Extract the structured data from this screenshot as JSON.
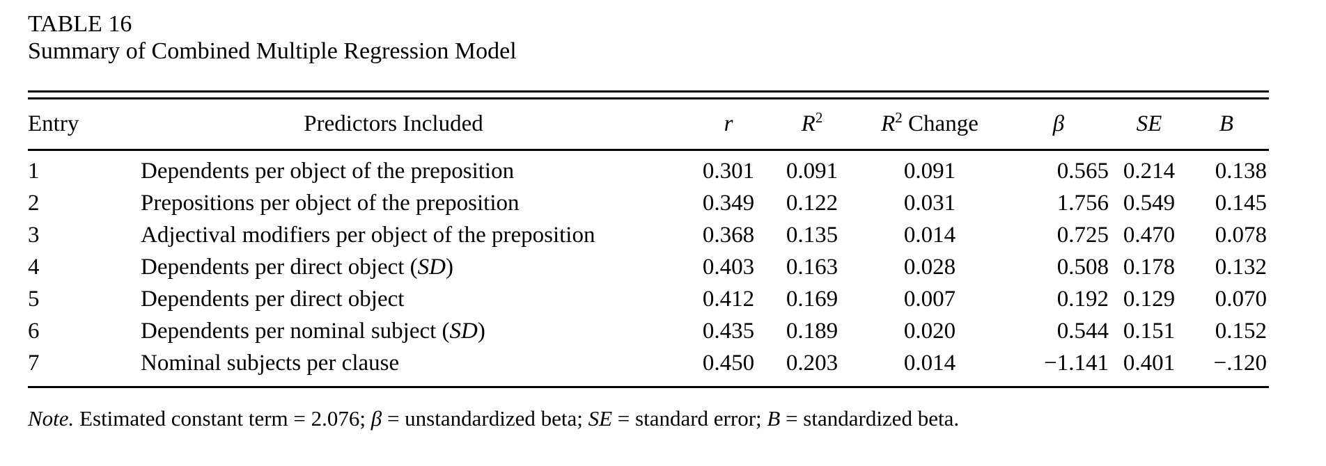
{
  "colors": {
    "text": "#000000",
    "background": "#ffffff"
  },
  "title": {
    "label": "TABLE 16",
    "subtitle": "Summary of Combined Multiple Regression Model"
  },
  "table": {
    "headers": {
      "entry": "Entry",
      "predictors": "Predictors Included",
      "r": "r",
      "r2_base": "R",
      "r2_sup": "2",
      "change_word": " Change",
      "beta": "β",
      "se": "SE",
      "b": "B"
    },
    "rows": [
      {
        "entry": "1",
        "pred_prefix": "Dependents per object of the preposition",
        "pred_italic": "",
        "pred_suffix": "",
        "r": "0.301",
        "r2": "0.091",
        "r2_change": "0.091",
        "beta": "0.565",
        "se": "0.214",
        "b": "0.138"
      },
      {
        "entry": "2",
        "pred_prefix": "Prepositions per object of the preposition",
        "pred_italic": "",
        "pred_suffix": "",
        "r": "0.349",
        "r2": "0.122",
        "r2_change": "0.031",
        "beta": "1.756",
        "se": "0.549",
        "b": "0.145"
      },
      {
        "entry": "3",
        "pred_prefix": "Adjectival modifiers per object of the preposition",
        "pred_italic": "",
        "pred_suffix": "",
        "r": "0.368",
        "r2": "0.135",
        "r2_change": "0.014",
        "beta": "0.725",
        "se": "0.470",
        "b": "0.078"
      },
      {
        "entry": "4",
        "pred_prefix": "Dependents per direct object (",
        "pred_italic": "SD",
        "pred_suffix": ")",
        "r": "0.403",
        "r2": "0.163",
        "r2_change": "0.028",
        "beta": "0.508",
        "se": "0.178",
        "b": "0.132"
      },
      {
        "entry": "5",
        "pred_prefix": "Dependents per direct object",
        "pred_italic": "",
        "pred_suffix": "",
        "r": "0.412",
        "r2": "0.169",
        "r2_change": "0.007",
        "beta": "0.192",
        "se": "0.129",
        "b": "0.070"
      },
      {
        "entry": "6",
        "pred_prefix": "Dependents per nominal subject (",
        "pred_italic": "SD",
        "pred_suffix": ")",
        "r": "0.435",
        "r2": "0.189",
        "r2_change": "0.020",
        "beta": "0.544",
        "se": "0.151",
        "b": "0.152"
      },
      {
        "entry": "7",
        "pred_prefix": "Nominal subjects per clause",
        "pred_italic": "",
        "pred_suffix": "",
        "r": "0.450",
        "r2": "0.203",
        "r2_change": "0.014",
        "beta": "−1.141",
        "se": "0.401",
        "b": "−.120"
      }
    ]
  },
  "note": {
    "parts": [
      {
        "text": "Note."
      },
      {
        "text": " Estimated constant term = 2.076; "
      },
      {
        "text": "β"
      },
      {
        "text": " = unstandardized beta; "
      },
      {
        "text": "SE"
      },
      {
        "text": " = standard error; "
      },
      {
        "text": "B"
      },
      {
        "text": " = standardized beta."
      }
    ]
  }
}
